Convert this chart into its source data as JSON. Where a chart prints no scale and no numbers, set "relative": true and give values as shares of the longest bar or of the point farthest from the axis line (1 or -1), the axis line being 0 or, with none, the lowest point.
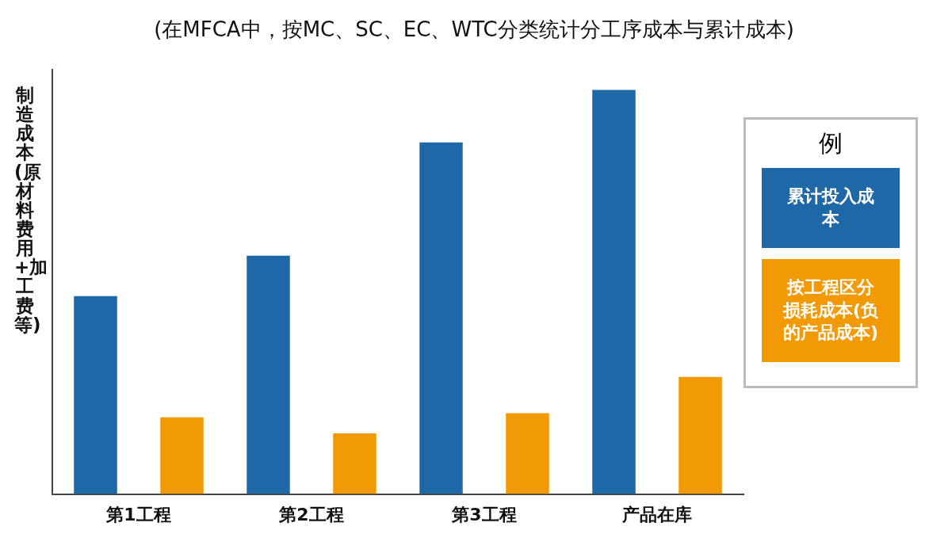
{
  "chart_data": {
    "type": "bar",
    "title": "(在MFCA中，按MC、SC、EC、WTC分类统计分工序成本与累计成本)",
    "ylabel": "制造成本(原材料费用+加工费等)",
    "legend_title": "例",
    "categories": [
      "第1工程",
      "第2工程",
      "第3工程",
      "产品在库"
    ],
    "relative": true,
    "grid": false,
    "legend": "top right",
    "tick_labels": "x",
    "series": [
      {
        "name": "累计投入成本",
        "color": "#1f68a8",
        "values": [
          0.49,
          0.59,
          0.87,
          1
        ]
      },
      {
        "name": "按工程区分损耗成本(负的产品成本)",
        "color": "#f29a06",
        "values": [
          0.19,
          0.15,
          0.2,
          0.29
        ]
      }
    ]
  }
}
